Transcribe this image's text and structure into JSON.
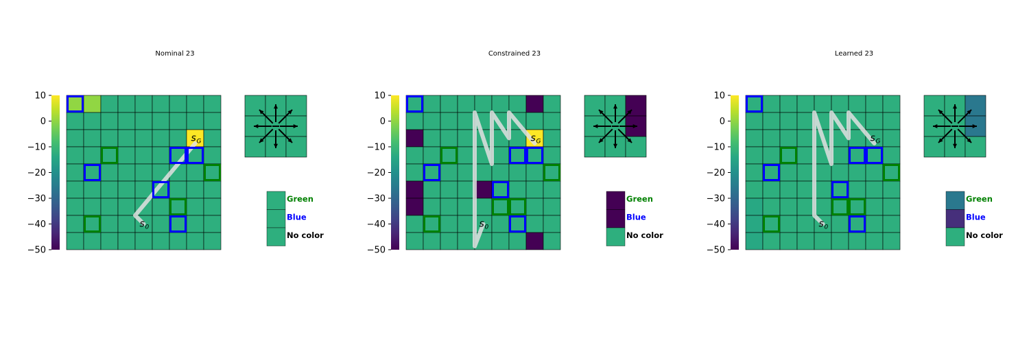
{
  "colorbar": {
    "ticks": [
      10,
      0,
      -10,
      -20,
      -30,
      -40,
      -50
    ],
    "tick_labels": [
      "10",
      "0",
      "−10",
      "−20",
      "−30",
      "−40",
      "−50"
    ],
    "range": [
      -50,
      10
    ],
    "colormap": "viridis"
  },
  "colors": {
    "grid_line": "#000000",
    "green_outline": "#008000",
    "blue_outline": "#0000ff",
    "path": "#e0e0e0",
    "goal": "#fde725"
  },
  "legend": [
    {
      "key": "green",
      "label": "Green",
      "color": "#008000"
    },
    {
      "key": "blue",
      "label": "Blue",
      "color": "#0000ff"
    },
    {
      "key": "none",
      "label": "No color",
      "color": "#000000"
    }
  ],
  "state_labels": {
    "start_base": "s",
    "start_sub": "0",
    "goal_base": "s",
    "goal_sub": "G"
  },
  "chart_data": [
    {
      "type": "heatmap",
      "title": "Nominal 23",
      "grid_size": [
        9,
        9
      ],
      "cell_values": [
        [
          0,
          0,
          -12,
          -12,
          -12,
          -12,
          -12,
          -12,
          -12
        ],
        [
          -12,
          -12,
          -12,
          -12,
          -12,
          -12,
          -12,
          -12,
          -12
        ],
        [
          -12,
          -12,
          -12,
          -12,
          -12,
          -12,
          -12,
          -12,
          -12
        ],
        [
          -12,
          -12,
          -12,
          -12,
          -12,
          -12,
          -12,
          -12,
          -12
        ],
        [
          -12,
          -12,
          -12,
          -12,
          -12,
          -12,
          -12,
          -12,
          -12
        ],
        [
          -12,
          -12,
          -12,
          -12,
          -12,
          -12,
          -12,
          -12,
          -12
        ],
        [
          -12,
          -12,
          -12,
          -12,
          -12,
          -12,
          -12,
          -12,
          -12
        ],
        [
          -12,
          -12,
          -12,
          -12,
          -12,
          -12,
          -12,
          -12,
          -12
        ],
        [
          -12,
          -12,
          -12,
          -12,
          -12,
          -12,
          -12,
          -12,
          -12
        ]
      ],
      "goal": [
        7,
        2
      ],
      "goal_value": 10,
      "start": [
        4,
        7
      ],
      "blue_cells": [
        [
          0,
          0
        ],
        [
          1,
          4
        ],
        [
          6,
          3
        ],
        [
          7,
          3
        ],
        [
          5,
          5
        ],
        [
          6,
          7
        ]
      ],
      "green_cells": [
        [
          2,
          3
        ],
        [
          8,
          4
        ],
        [
          6,
          6
        ],
        [
          1,
          7
        ]
      ],
      "path": [
        [
          7,
          2.3
        ],
        [
          3.5,
          6.5
        ],
        [
          4,
          7
        ]
      ],
      "action_grid": [
        [
          -12,
          -12,
          -12
        ],
        [
          -12,
          -12,
          -12
        ],
        [
          -12,
          -12,
          -12
        ]
      ],
      "legend_values": {
        "green": -12,
        "blue": -12,
        "none": -12
      }
    },
    {
      "type": "heatmap",
      "title": "Constrained 23",
      "grid_size": [
        9,
        9
      ],
      "cell_values": [
        [
          -12,
          -12,
          -12,
          -12,
          -12,
          -12,
          -12,
          -50,
          -12
        ],
        [
          -12,
          -12,
          -12,
          -12,
          -12,
          -12,
          -12,
          -12,
          -12
        ],
        [
          -50,
          -12,
          -12,
          -12,
          -12,
          -12,
          -12,
          -12,
          -12
        ],
        [
          -12,
          -12,
          -12,
          -12,
          -12,
          -12,
          -12,
          -12,
          -12
        ],
        [
          -12,
          -12,
          -12,
          -12,
          -12,
          -12,
          -12,
          -12,
          -12
        ],
        [
          -50,
          -12,
          -12,
          -12,
          -50,
          -12,
          -12,
          -12,
          -12
        ],
        [
          -50,
          -12,
          -12,
          -12,
          -12,
          -12,
          -12,
          -12,
          -12
        ],
        [
          -12,
          -12,
          -12,
          -12,
          -12,
          -12,
          -12,
          -12,
          -12
        ],
        [
          -12,
          -12,
          -12,
          -12,
          -12,
          -12,
          -12,
          -50,
          -12
        ]
      ],
      "goal": [
        7,
        2
      ],
      "goal_value": 10,
      "start": [
        4,
        7
      ],
      "blue_cells": [
        [
          0,
          0
        ],
        [
          6,
          3
        ],
        [
          7,
          3
        ],
        [
          1,
          4
        ],
        [
          5,
          5
        ],
        [
          6,
          7
        ]
      ],
      "green_cells": [
        [
          2,
          3
        ],
        [
          8,
          4
        ],
        [
          5,
          6
        ],
        [
          6,
          6
        ],
        [
          1,
          7
        ]
      ],
      "path": [
        [
          7,
          2.3
        ],
        [
          5.5,
          0.5
        ],
        [
          5.5,
          2
        ],
        [
          4.5,
          0.5
        ],
        [
          4.5,
          3.5
        ],
        [
          3.5,
          0.5
        ],
        [
          3.5,
          8.3
        ],
        [
          4,
          7
        ]
      ],
      "action_grid": [
        [
          -12,
          -12,
          -50
        ],
        [
          -12,
          -12,
          -50
        ],
        [
          -12,
          -12,
          -12
        ]
      ],
      "legend_values": {
        "green": -50,
        "blue": -50,
        "none": -12
      }
    },
    {
      "type": "heatmap",
      "title": "Learned 23",
      "grid_size": [
        9,
        9
      ],
      "cell_values": [
        [
          -12,
          -12,
          -12,
          -12,
          -12,
          -12,
          -12,
          -12,
          -12
        ],
        [
          -12,
          -12,
          -12,
          -12,
          -12,
          -12,
          -12,
          -12,
          -12
        ],
        [
          -12,
          -12,
          -12,
          -12,
          -12,
          -12,
          -12,
          -12,
          -12
        ],
        [
          -12,
          -12,
          -12,
          -12,
          -12,
          -12,
          -12,
          -12,
          -12
        ],
        [
          -12,
          -12,
          -12,
          -12,
          -12,
          -12,
          -12,
          -12,
          -12
        ],
        [
          -12,
          -12,
          -12,
          -12,
          -12,
          -12,
          -12,
          -12,
          -12
        ],
        [
          -14,
          -12,
          -12,
          -12,
          -12,
          -12,
          -12,
          -12,
          -12
        ],
        [
          -14,
          -12,
          -12,
          -12,
          -12,
          -12,
          -12,
          -12,
          -12
        ],
        [
          -14,
          -12,
          -12,
          -12,
          -12,
          -12,
          -12,
          -12,
          -12
        ]
      ],
      "goal": [
        7,
        2
      ],
      "goal_value": -12,
      "start": [
        4,
        7
      ],
      "blue_cells": [
        [
          0,
          0
        ],
        [
          6,
          3
        ],
        [
          7,
          3
        ],
        [
          1,
          4
        ],
        [
          5,
          5
        ],
        [
          6,
          7
        ]
      ],
      "green_cells": [
        [
          2,
          3
        ],
        [
          8,
          4
        ],
        [
          5,
          6
        ],
        [
          6,
          6
        ],
        [
          1,
          7
        ]
      ],
      "path": [
        [
          7,
          2.3
        ],
        [
          5.5,
          0.5
        ],
        [
          5.5,
          2
        ],
        [
          4.5,
          0.5
        ],
        [
          4.5,
          3.5
        ],
        [
          3.5,
          0.5
        ],
        [
          3.5,
          6.5
        ],
        [
          4,
          7
        ]
      ],
      "action_grid": [
        [
          -12,
          -12,
          -26
        ],
        [
          -12,
          -12,
          -26
        ],
        [
          -12,
          -12,
          -12
        ]
      ],
      "legend_values": {
        "green": -26,
        "blue": -42,
        "none": -12
      }
    }
  ]
}
